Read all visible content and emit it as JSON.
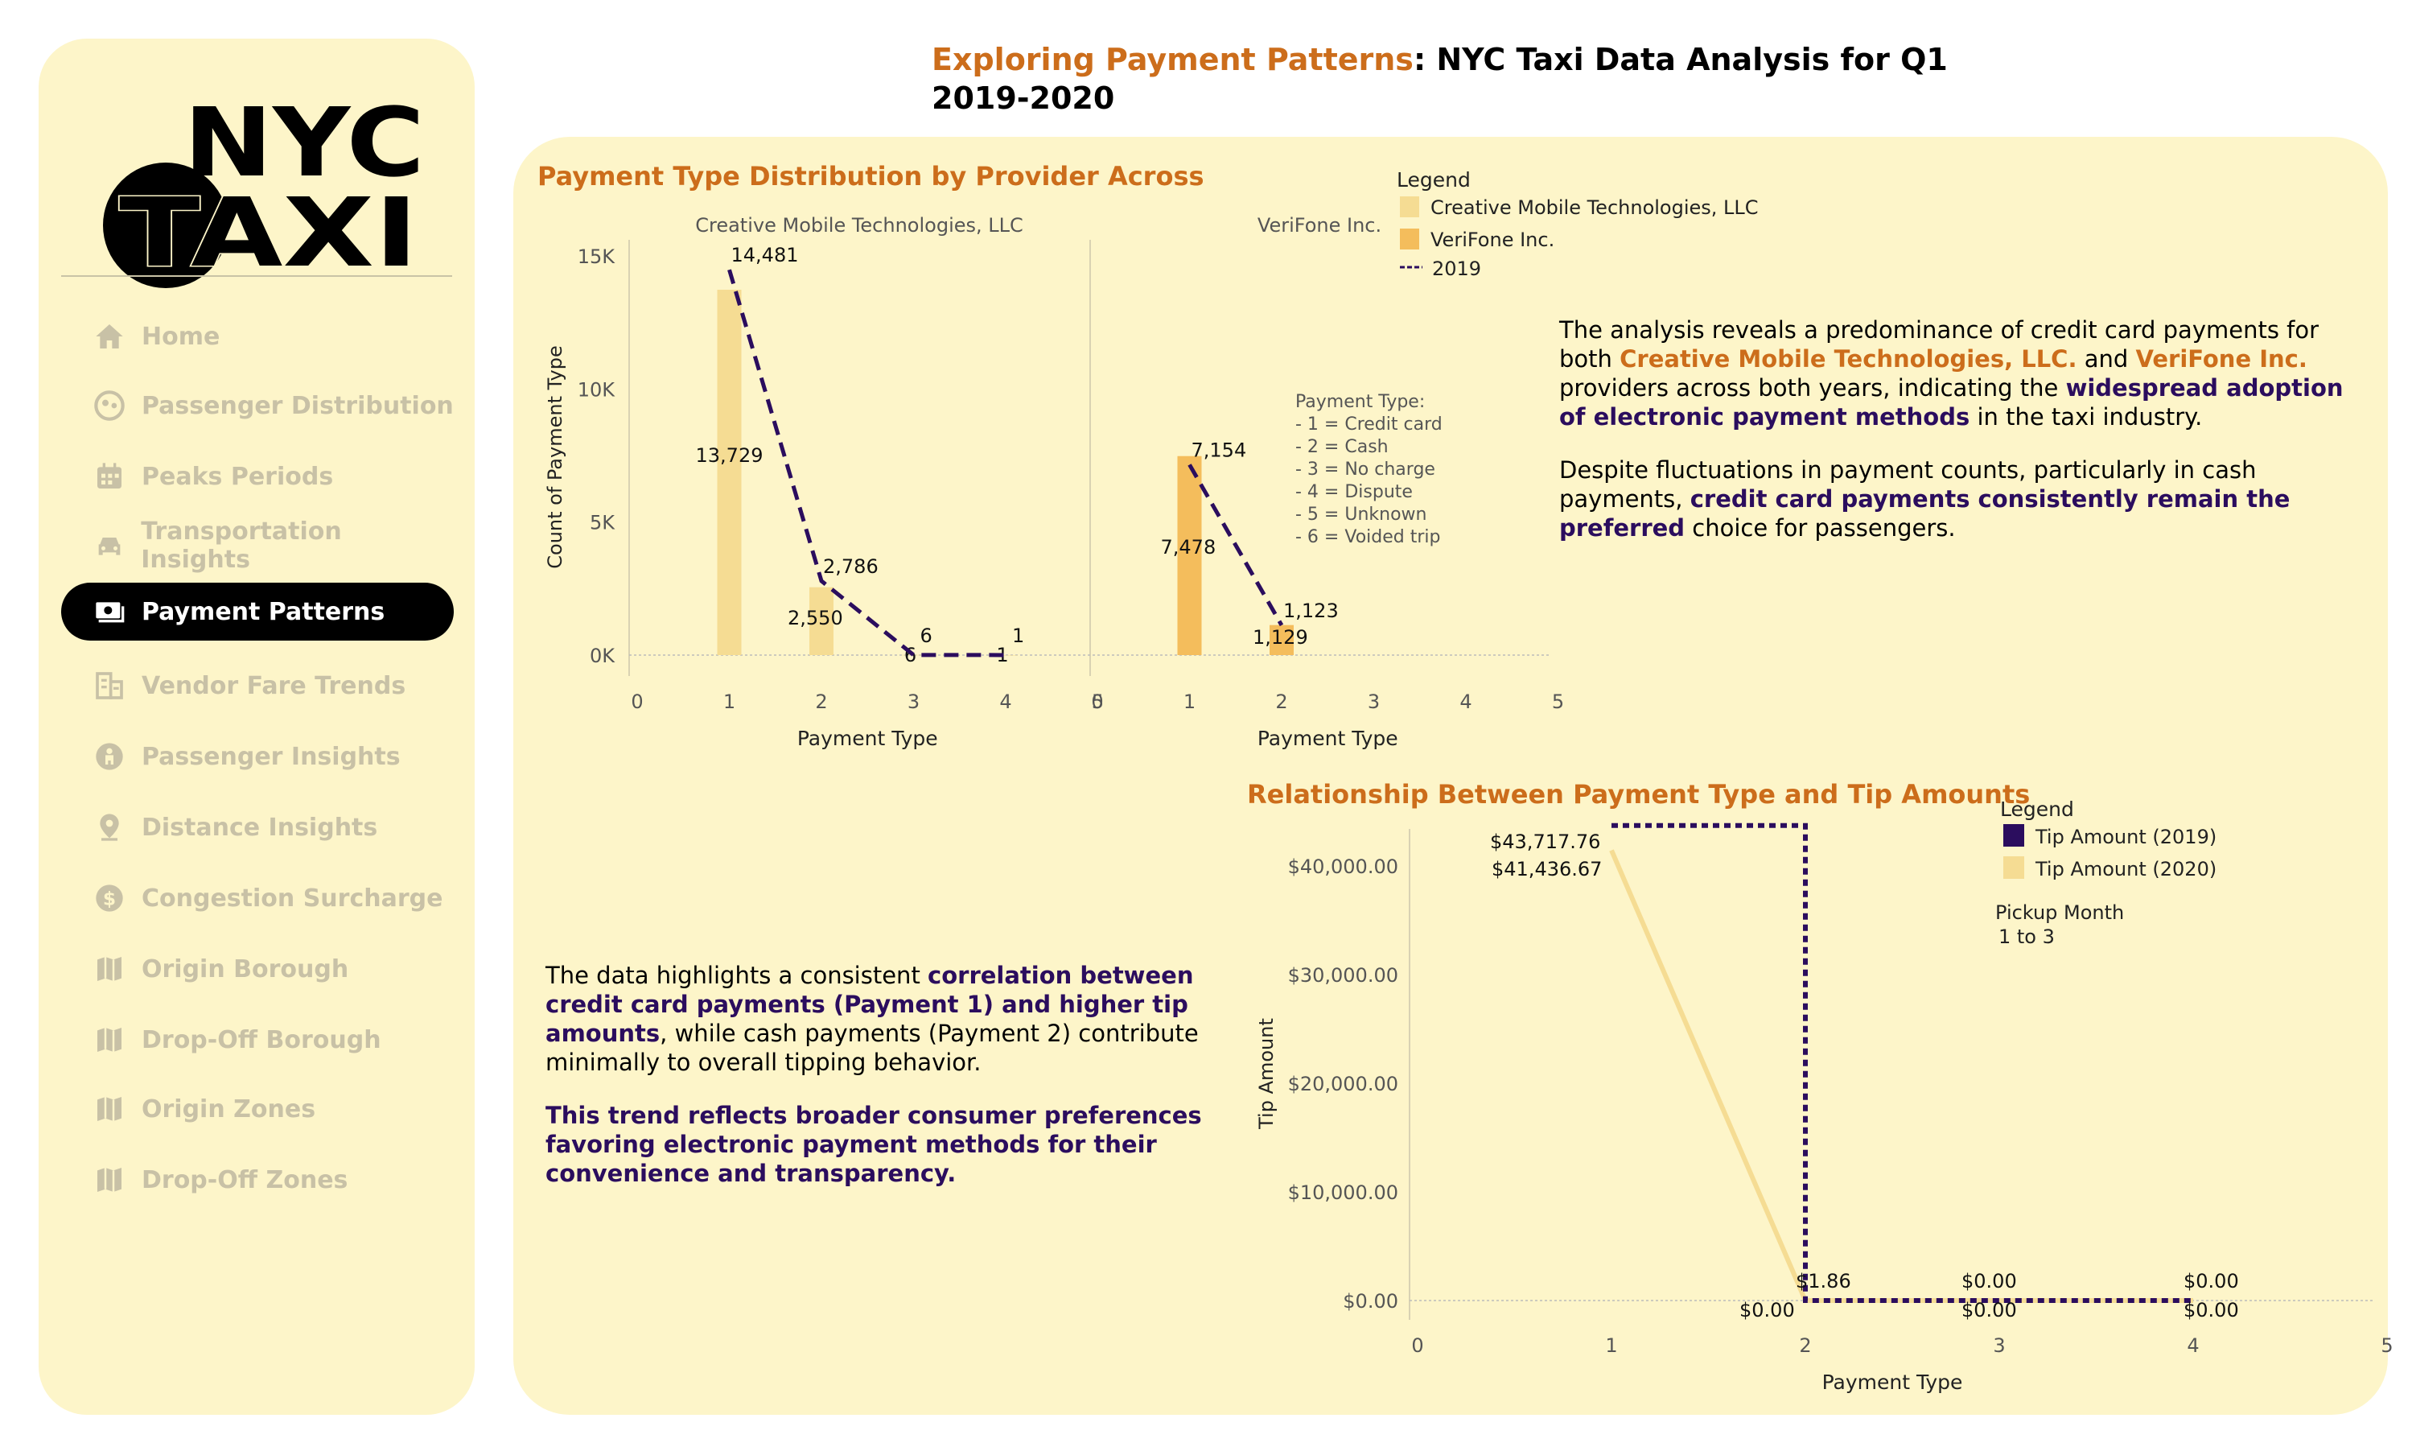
{
  "page": {
    "title_accent": "Exploring Payment Patterns",
    "title_rest": ": NYC Taxi Data Analysis for Q1 2019-2020"
  },
  "sidebar": {
    "logo": {
      "line1": "NYC",
      "line2": "TAXI"
    },
    "items": [
      {
        "label": "Home",
        "icon": "home-icon"
      },
      {
        "label": "Passenger Distribution",
        "icon": "passenger-icon"
      },
      {
        "label": "Peaks Periods",
        "icon": "calendar-icon"
      },
      {
        "label": "Transportation Insights",
        "icon": "car-icon"
      },
      {
        "label": "Payment Patterns",
        "icon": "money-icon",
        "active": true
      },
      {
        "label": "Vendor Fare Trends",
        "icon": "building-icon"
      },
      {
        "label": "Passenger Insights",
        "icon": "person-icon"
      },
      {
        "label": "Distance Insights",
        "icon": "pin-icon"
      },
      {
        "label": "Congestion Surcharge",
        "icon": "dollar-icon"
      },
      {
        "label": "Origin Borough",
        "icon": "map-icon"
      },
      {
        "label": "Drop-Off Borough",
        "icon": "map-icon"
      },
      {
        "label": "Origin Zones",
        "icon": "map-icon"
      },
      {
        "label": "Drop-Off Zones",
        "icon": "map-icon"
      }
    ]
  },
  "colors": {
    "accent": "#cc6d1b",
    "purple": "#2b0d5e",
    "bar_cmt": "#f5dc93",
    "bar_vf": "#f4bd5c",
    "panel": "#fdf5c9"
  },
  "insights": {
    "para1_a": "The analysis reveals a predominance of credit card payments for both ",
    "para1_b": "Creative Mobile Technologies, LLC.",
    "para1_c": " and ",
    "para1_d": "VeriFone Inc.",
    "para1_e": " providers across both years, indicating the ",
    "para1_f": "widespread adoption of electronic payment methods",
    "para1_g": " in the taxi industry.",
    "para2_a": "Despite fluctuations in payment counts, particularly in cash payments, ",
    "para2_b": "credit card payments consistently remain the preferred",
    "para2_c": " choice for passengers.",
    "para3_a": "The data highlights a consistent ",
    "para3_b": "correlation between credit card payments (Payment 1) and higher tip amounts",
    "para3_c": ", while cash payments (Payment 2) contribute minimally to overall tipping behavior.",
    "para4": "This trend reflects broader consumer preferences favoring electronic payment methods for their convenience and transparency."
  },
  "chart_data": [
    {
      "type": "bar",
      "title": "Payment Type Distribution by Provider Across",
      "xlabel": "Payment Type",
      "ylabel": "Count of Payment Type",
      "ylim": [
        0,
        15000
      ],
      "yticks": [
        "0K",
        "5K",
        "10K",
        "15K"
      ],
      "xticks": [
        "0",
        "1",
        "2",
        "3",
        "4",
        "5"
      ],
      "legend": {
        "title": "Legend",
        "placement": "top-right",
        "entries": [
          "Creative Mobile Technologies, LLC",
          "VeriFone Inc.",
          "2019"
        ]
      },
      "note": [
        "Payment Type:",
        "- 1 = Credit card",
        "- 2 = Cash",
        "- 3 = No charge",
        "- 4 = Dispute",
        "- 5 = Unknown",
        "- 6 = Voided trip"
      ],
      "panels": [
        {
          "name": "Creative Mobile Technologies, LLC",
          "bars": {
            "x": [
              1,
              2,
              3,
              4
            ],
            "values": [
              13729,
              2550,
              6,
              1
            ],
            "labels": [
              "13,729",
              "2,550",
              "6",
              "1"
            ]
          },
          "line_2019": {
            "x": [
              1,
              2,
              3,
              4
            ],
            "values": [
              14481,
              2786,
              6,
              1
            ],
            "labels": [
              "14,481",
              "2,786",
              "6",
              "1"
            ]
          }
        },
        {
          "name": "VeriFone Inc.",
          "bars": {
            "x": [
              1,
              2
            ],
            "values": [
              7478,
              1129
            ],
            "labels": [
              "7,478",
              "1,129"
            ]
          },
          "line_2019": {
            "x": [
              1,
              2
            ],
            "values": [
              7154,
              1123
            ],
            "labels": [
              "7,154",
              "1,123"
            ]
          }
        }
      ]
    },
    {
      "type": "line",
      "title": "Relationship Between Payment Type and Tip Amounts",
      "xlabel": "Payment Type",
      "ylabel": "Tip Amount",
      "ylim": [
        0,
        45000
      ],
      "yticks": [
        "$0.00",
        "$10,000.00",
        "$20,000.00",
        "$30,000.00",
        "$40,000.00"
      ],
      "xticks": [
        "0",
        "1",
        "2",
        "3",
        "4",
        "5"
      ],
      "legend": {
        "title": "Legend",
        "placement": "top-right",
        "entries": [
          "Tip Amount (2019)",
          "Tip Amount (2020)"
        ],
        "extra_title": "Pickup Month",
        "extra_value": "1 to 3"
      },
      "series": [
        {
          "name": "Tip Amount (2019)",
          "x": [
            1,
            2,
            3,
            4
          ],
          "values": [
            43717.76,
            1.86,
            0,
            0
          ],
          "labels": [
            "$43,717.76",
            "$1.86",
            "$0.00",
            "$0.00"
          ]
        },
        {
          "name": "Tip Amount (2020)",
          "x": [
            1,
            2,
            3,
            4
          ],
          "values": [
            41436.67,
            0,
            0,
            0
          ],
          "labels": [
            "$41,436.67",
            "$0.00",
            "$0.00",
            "$0.00"
          ]
        }
      ]
    }
  ]
}
